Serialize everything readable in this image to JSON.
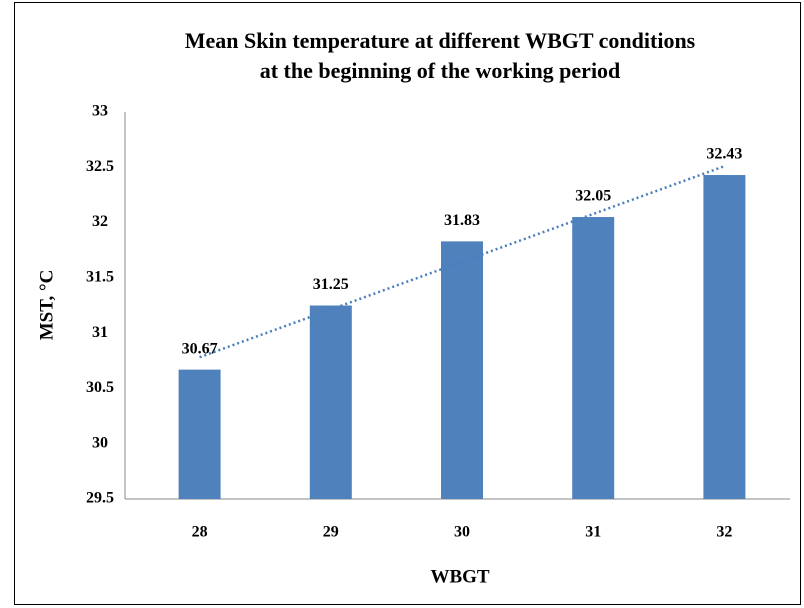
{
  "chart_data": {
    "type": "bar",
    "title": [
      "Mean Skin temperature at different WBGT conditions",
      "at the beginning of the working period"
    ],
    "x_label": "WBGT",
    "y_label": "MST, °C",
    "categories": [
      "28",
      "29",
      "30",
      "31",
      "32"
    ],
    "values": [
      30.67,
      31.25,
      31.83,
      32.05,
      32.43
    ],
    "color": "#4f81bd",
    "ylim": [
      29.5,
      33
    ],
    "yticks": [
      29.5,
      30,
      30.5,
      31,
      31.5,
      32,
      32.5,
      33
    ],
    "grid": false,
    "trendline": "linear",
    "trendline_color": "#4a7ebb"
  }
}
